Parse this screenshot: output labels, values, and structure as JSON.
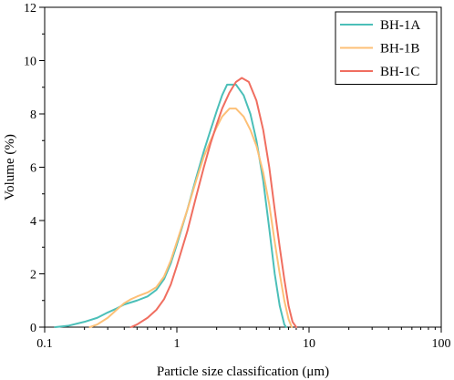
{
  "chart_data": {
    "type": "line",
    "title": "",
    "xlabel": "Particle size classification (μm)",
    "ylabel": "Volume (%)",
    "xscale": "log",
    "xlim": [
      0.1,
      100
    ],
    "ylim": [
      0,
      12
    ],
    "xticks": [
      0.1,
      1,
      10,
      100
    ],
    "xtick_labels": [
      "0.1",
      "1",
      "10",
      "100"
    ],
    "yticks": [
      0,
      2,
      4,
      6,
      8,
      10,
      12
    ],
    "ytick_labels": [
      "0",
      "2",
      "4",
      "6",
      "8",
      "10",
      "12"
    ],
    "grid": false,
    "legend_position": "top-right",
    "series": [
      {
        "name": "BH-1A",
        "color": "#4bbfb8",
        "points": [
          [
            0.12,
            0.0
          ],
          [
            0.15,
            0.05
          ],
          [
            0.2,
            0.2
          ],
          [
            0.25,
            0.35
          ],
          [
            0.3,
            0.55
          ],
          [
            0.35,
            0.7
          ],
          [
            0.4,
            0.85
          ],
          [
            0.5,
            1.0
          ],
          [
            0.6,
            1.15
          ],
          [
            0.7,
            1.4
          ],
          [
            0.8,
            1.8
          ],
          [
            0.9,
            2.4
          ],
          [
            1.0,
            3.1
          ],
          [
            1.2,
            4.4
          ],
          [
            1.4,
            5.6
          ],
          [
            1.6,
            6.6
          ],
          [
            1.8,
            7.4
          ],
          [
            2.0,
            8.1
          ],
          [
            2.2,
            8.7
          ],
          [
            2.4,
            9.1
          ],
          [
            2.8,
            9.1
          ],
          [
            3.2,
            8.7
          ],
          [
            3.6,
            8.0
          ],
          [
            4.0,
            7.0
          ],
          [
            4.5,
            5.5
          ],
          [
            5.0,
            3.7
          ],
          [
            5.5,
            2.0
          ],
          [
            6.0,
            0.8
          ],
          [
            6.5,
            0.1
          ],
          [
            6.7,
            0.0
          ]
        ]
      },
      {
        "name": "BH-1B",
        "color": "#fdc077",
        "points": [
          [
            0.22,
            0.0
          ],
          [
            0.25,
            0.1
          ],
          [
            0.3,
            0.35
          ],
          [
            0.35,
            0.65
          ],
          [
            0.4,
            0.9
          ],
          [
            0.45,
            1.05
          ],
          [
            0.5,
            1.15
          ],
          [
            0.6,
            1.3
          ],
          [
            0.7,
            1.5
          ],
          [
            0.8,
            1.9
          ],
          [
            0.9,
            2.5
          ],
          [
            1.0,
            3.2
          ],
          [
            1.2,
            4.4
          ],
          [
            1.4,
            5.5
          ],
          [
            1.6,
            6.4
          ],
          [
            1.8,
            7.0
          ],
          [
            2.0,
            7.5
          ],
          [
            2.2,
            7.9
          ],
          [
            2.5,
            8.2
          ],
          [
            2.8,
            8.2
          ],
          [
            3.2,
            7.9
          ],
          [
            3.6,
            7.4
          ],
          [
            4.0,
            6.8
          ],
          [
            4.5,
            5.8
          ],
          [
            5.0,
            4.6
          ],
          [
            5.5,
            3.2
          ],
          [
            6.0,
            2.0
          ],
          [
            6.5,
            1.0
          ],
          [
            7.0,
            0.3
          ],
          [
            7.4,
            0.0
          ]
        ]
      },
      {
        "name": "BH-1C",
        "color": "#f06e60",
        "points": [
          [
            0.45,
            0.0
          ],
          [
            0.5,
            0.1
          ],
          [
            0.6,
            0.35
          ],
          [
            0.7,
            0.65
          ],
          [
            0.8,
            1.05
          ],
          [
            0.9,
            1.6
          ],
          [
            1.0,
            2.3
          ],
          [
            1.2,
            3.6
          ],
          [
            1.4,
            4.9
          ],
          [
            1.6,
            6.0
          ],
          [
            1.8,
            6.9
          ],
          [
            2.0,
            7.6
          ],
          [
            2.2,
            8.2
          ],
          [
            2.5,
            8.8
          ],
          [
            2.8,
            9.2
          ],
          [
            3.1,
            9.35
          ],
          [
            3.5,
            9.2
          ],
          [
            4.0,
            8.5
          ],
          [
            4.5,
            7.4
          ],
          [
            5.0,
            6.0
          ],
          [
            5.5,
            4.4
          ],
          [
            6.0,
            3.0
          ],
          [
            6.5,
            1.8
          ],
          [
            7.0,
            0.8
          ],
          [
            7.5,
            0.2
          ],
          [
            8.0,
            0.0
          ]
        ]
      }
    ]
  }
}
